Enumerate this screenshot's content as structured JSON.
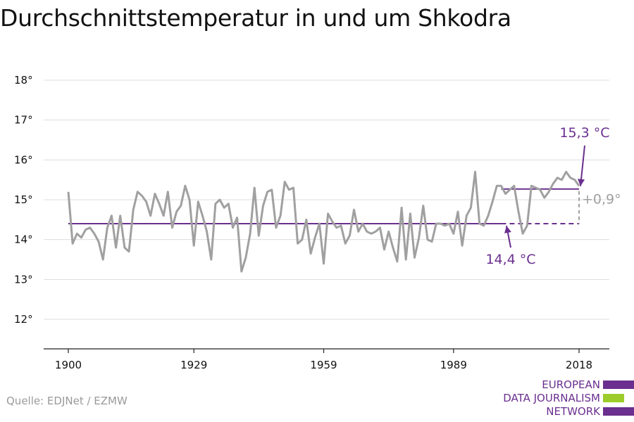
{
  "chart_data": {
    "type": "line",
    "title": "Durchschnittstemperatur in und um Shkodra",
    "xlabel": "",
    "ylabel": "",
    "xlim": [
      1900,
      2018
    ],
    "ylim": [
      12,
      18
    ],
    "x_ticks": [
      1900,
      1929,
      1959,
      1989,
      2018
    ],
    "y_ticks": [
      12,
      13,
      14,
      15,
      16,
      17,
      18
    ],
    "y_tick_format": "°",
    "grid": true,
    "colors": {
      "series": "#a0a0a0",
      "reference": "#6a2f8f",
      "delta": "#a0a0a0"
    },
    "series": [
      {
        "values": [
          [
            1900,
            15.2
          ],
          [
            1901,
            13.9
          ],
          [
            1902,
            14.15
          ],
          [
            1903,
            14.05
          ],
          [
            1904,
            14.25
          ],
          [
            1905,
            14.3
          ],
          [
            1906,
            14.15
          ],
          [
            1907,
            13.95
          ],
          [
            1908,
            13.5
          ],
          [
            1909,
            14.3
          ],
          [
            1910,
            14.6
          ],
          [
            1911,
            13.8
          ],
          [
            1912,
            14.6
          ],
          [
            1913,
            13.8
          ],
          [
            1914,
            13.7
          ],
          [
            1915,
            14.75
          ],
          [
            1916,
            15.2
          ],
          [
            1917,
            15.1
          ],
          [
            1918,
            14.95
          ],
          [
            1919,
            14.6
          ],
          [
            1920,
            15.15
          ],
          [
            1921,
            14.9
          ],
          [
            1922,
            14.6
          ],
          [
            1923,
            15.2
          ],
          [
            1924,
            14.3
          ],
          [
            1925,
            14.7
          ],
          [
            1926,
            14.85
          ],
          [
            1927,
            15.35
          ],
          [
            1928,
            15.0
          ],
          [
            1929,
            13.85
          ],
          [
            1930,
            14.95
          ],
          [
            1931,
            14.6
          ],
          [
            1932,
            14.2
          ],
          [
            1933,
            13.5
          ],
          [
            1934,
            14.9
          ],
          [
            1935,
            15.0
          ],
          [
            1936,
            14.8
          ],
          [
            1937,
            14.9
          ],
          [
            1938,
            14.3
          ],
          [
            1939,
            14.55
          ],
          [
            1940,
            13.2
          ],
          [
            1941,
            13.55
          ],
          [
            1942,
            14.15
          ],
          [
            1943,
            15.3
          ],
          [
            1944,
            14.1
          ],
          [
            1945,
            14.85
          ],
          [
            1946,
            15.2
          ],
          [
            1947,
            15.25
          ],
          [
            1948,
            14.3
          ],
          [
            1949,
            14.6
          ],
          [
            1950,
            15.45
          ],
          [
            1951,
            15.25
          ],
          [
            1952,
            15.3
          ],
          [
            1953,
            13.9
          ],
          [
            1954,
            14.0
          ],
          [
            1955,
            14.5
          ],
          [
            1956,
            13.65
          ],
          [
            1957,
            14.05
          ],
          [
            1958,
            14.4
          ],
          [
            1959,
            13.4
          ],
          [
            1960,
            14.65
          ],
          [
            1961,
            14.45
          ],
          [
            1962,
            14.3
          ],
          [
            1963,
            14.35
          ],
          [
            1964,
            13.9
          ],
          [
            1965,
            14.1
          ],
          [
            1966,
            14.75
          ],
          [
            1967,
            14.2
          ],
          [
            1968,
            14.4
          ],
          [
            1969,
            14.2
          ],
          [
            1970,
            14.15
          ],
          [
            1971,
            14.2
          ],
          [
            1972,
            14.3
          ],
          [
            1973,
            13.75
          ],
          [
            1974,
            14.2
          ],
          [
            1975,
            13.8
          ],
          [
            1976,
            13.45
          ],
          [
            1977,
            14.8
          ],
          [
            1978,
            13.5
          ],
          [
            1979,
            14.65
          ],
          [
            1980,
            13.55
          ],
          [
            1981,
            14.05
          ],
          [
            1982,
            14.85
          ],
          [
            1983,
            14.0
          ],
          [
            1984,
            13.95
          ],
          [
            1985,
            14.4
          ],
          [
            1986,
            14.4
          ],
          [
            1987,
            14.35
          ],
          [
            1988,
            14.4
          ],
          [
            1989,
            14.15
          ],
          [
            1990,
            14.7
          ],
          [
            1991,
            13.85
          ],
          [
            1992,
            14.6
          ],
          [
            1993,
            14.8
          ],
          [
            1994,
            15.7
          ],
          [
            1995,
            14.4
          ],
          [
            1996,
            14.35
          ],
          [
            1997,
            14.6
          ],
          [
            1998,
            14.95
          ],
          [
            1999,
            15.35
          ],
          [
            2000,
            15.35
          ],
          [
            2001,
            15.15
          ],
          [
            2002,
            15.25
          ],
          [
            2003,
            15.35
          ],
          [
            2004,
            14.7
          ],
          [
            2005,
            14.15
          ],
          [
            2006,
            14.35
          ],
          [
            2007,
            15.35
          ],
          [
            2008,
            15.3
          ],
          [
            2009,
            15.25
          ],
          [
            2010,
            15.05
          ],
          [
            2011,
            15.2
          ],
          [
            2012,
            15.4
          ],
          [
            2013,
            15.55
          ],
          [
            2014,
            15.5
          ],
          [
            2015,
            15.7
          ],
          [
            2016,
            15.55
          ],
          [
            2017,
            15.5
          ],
          [
            2018,
            15.35
          ]
        ]
      }
    ],
    "reference_lines": [
      {
        "label": "14,4 °C",
        "value": 14.4,
        "x_start": 1900,
        "x_solid_end": 2000,
        "x_end": 2018,
        "dash_from": 2000
      },
      {
        "label": "15,3 °C",
        "value": 15.27,
        "x_start": 2000,
        "x_end": 2018
      }
    ],
    "delta_label": "+0,9°",
    "annotations": [
      {
        "text": "15,3 °C",
        "points_to": [
          2018,
          15.27
        ]
      },
      {
        "text": "14,4 °C",
        "points_to": [
          2009,
          14.4
        ]
      }
    ]
  },
  "footer": {
    "source": "Quelle: EDJNet / EZMW",
    "logo_lines": [
      "EUROPEAN",
      "DATA JOURNALISM",
      "NETWORK"
    ],
    "logo_bar_colors": [
      "#6a2f8f",
      "#9ccc2a",
      "#6a2f8f"
    ]
  }
}
